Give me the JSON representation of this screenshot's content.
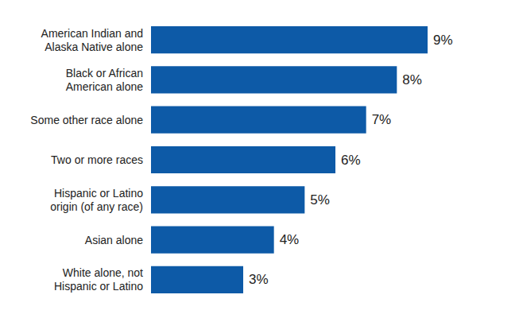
{
  "chart_data": {
    "type": "bar",
    "orientation": "horizontal",
    "categories": [
      "American Indian and\nAlaska Native alone",
      "Black or African\nAmerican alone",
      "Some other race alone",
      "Two or more races",
      "Hispanic or Latino\norigin (of any race)",
      "Asian alone",
      "White alone, not\nHispanic or Latino"
    ],
    "values": [
      9,
      8,
      7,
      6,
      5,
      4,
      3
    ],
    "value_labels": [
      "9%",
      "8%",
      "7%",
      "6%",
      "5%",
      "4%",
      "3%"
    ],
    "color": "#0d5aa7",
    "xlim": [
      0,
      9
    ],
    "grid": false,
    "data_labels": true,
    "tick_labels": "y"
  }
}
